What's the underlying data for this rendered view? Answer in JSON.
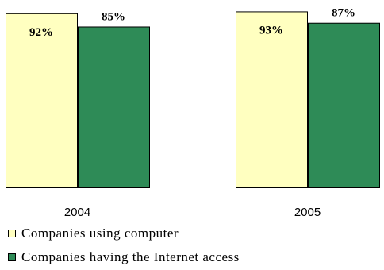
{
  "chart_data": {
    "type": "bar",
    "categories": [
      "2004",
      "2005"
    ],
    "series": [
      {
        "name": "Companies using computer",
        "values": [
          92,
          93
        ],
        "labels": [
          "92%",
          "93%"
        ],
        "color": "#ffffc0",
        "stroke": "#000000"
      },
      {
        "name": "Companies having the Internet access",
        "values": [
          85,
          87
        ],
        "labels": [
          "85%",
          "87%"
        ],
        "color": "#2e8b57",
        "stroke": "#000000"
      }
    ],
    "ylim": [
      0,
      93.6
    ],
    "grid": false,
    "legend_position": "bottom-left"
  }
}
